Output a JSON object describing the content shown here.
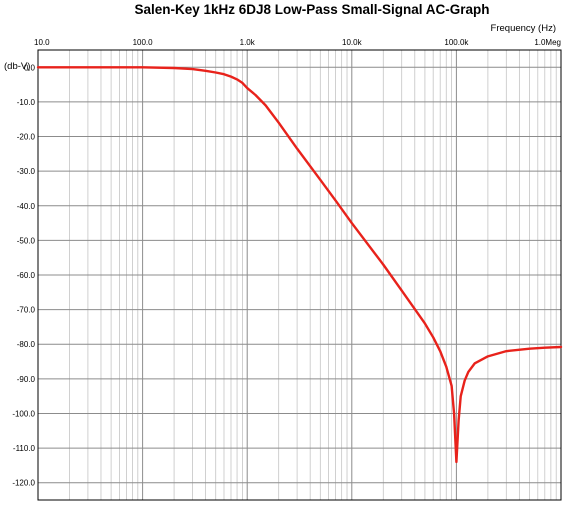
{
  "chart_data": {
    "type": "line",
    "title": "Salen-Key 1kHz 6DJ8 Low-Pass Small-Signal AC-Graph",
    "xlabel": "Frequency  (Hz)",
    "ylabel": "(db-V)",
    "x_scale": "log",
    "xlim": [
      10,
      1000000
    ],
    "ylim": [
      -125,
      5
    ],
    "grid": true,
    "x_tick_values": [
      10,
      100,
      1000,
      10000,
      100000,
      1000000
    ],
    "x_tick_labels": [
      "10.0",
      "100.0",
      "1.0k",
      "10.0k",
      "100.0k",
      "1.0Meg"
    ],
    "y_tick_values": [
      0,
      -10,
      -20,
      -30,
      -40,
      -50,
      -60,
      -70,
      -80,
      -90,
      -100,
      -110,
      -120
    ],
    "y_tick_labels": [
      "0.0",
      "-10.0",
      "-20.0",
      "-30.0",
      "-40.0",
      "-50.0",
      "-60.0",
      "-70.0",
      "-80.0",
      "-90.0",
      "-100.0",
      "-110.0",
      "-120.0"
    ],
    "colors": {
      "series": "#e8221b",
      "major_grid": "#8c8c8c",
      "minor_grid": "#c4c4c4",
      "axis": "#000000"
    },
    "series": [
      {
        "x": [
          10,
          50,
          100,
          200,
          300,
          400,
          500,
          600,
          700,
          800,
          900,
          1000,
          1200,
          1500,
          2000,
          3000,
          5000,
          7000,
          10000,
          20000,
          30000,
          50000,
          60000,
          70000,
          80000,
          90000,
          95000,
          100000,
          105000,
          110000,
          120000,
          130000,
          150000,
          200000,
          300000,
          500000,
          700000,
          1000000
        ],
        "y": [
          0,
          0,
          0,
          -0.2,
          -0.5,
          -1,
          -1.5,
          -2,
          -2.7,
          -3.5,
          -4.5,
          -6,
          -8,
          -11,
          -16,
          -23.5,
          -32.5,
          -38.5,
          -45,
          -57,
          -64.5,
          -74,
          -78,
          -82,
          -86.5,
          -92,
          -100,
          -114,
          -102,
          -95,
          -90.5,
          -88,
          -85.5,
          -83.5,
          -82,
          -81.3,
          -81,
          -80.8
        ]
      }
    ]
  }
}
